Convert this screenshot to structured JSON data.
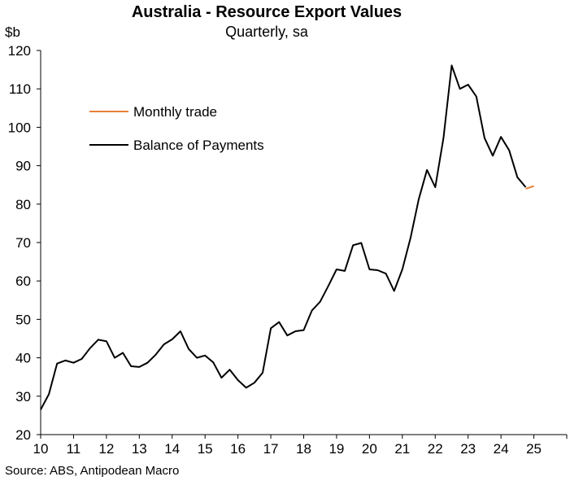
{
  "chart_data": {
    "type": "line",
    "title": "Australia - Resource Export Values",
    "subtitle": "Quarterly, sa",
    "ylabel": "$b",
    "ylim": [
      20,
      120
    ],
    "xlim": [
      2010,
      2026
    ],
    "yticks": [
      20,
      30,
      40,
      50,
      60,
      70,
      80,
      90,
      100,
      110,
      120
    ],
    "xtick_labels": [
      "10",
      "11",
      "12",
      "13",
      "14",
      "15",
      "16",
      "17",
      "18",
      "19",
      "20",
      "21",
      "22",
      "23",
      "24",
      "25"
    ],
    "grid": false,
    "legend_position": "top-left",
    "source": "Source: ABS, Antipodean Macro",
    "series": [
      {
        "name": "Monthly trade",
        "color": "#E8803A",
        "x": [
          2024.75,
          2025.0
        ],
        "y": [
          84.0,
          84.7
        ]
      },
      {
        "name": "Balance of Payments",
        "color": "#000000",
        "x": [
          2010.0,
          2010.25,
          2010.5,
          2010.75,
          2011.0,
          2011.25,
          2011.5,
          2011.75,
          2012.0,
          2012.25,
          2012.5,
          2012.75,
          2013.0,
          2013.25,
          2013.5,
          2013.75,
          2014.0,
          2014.25,
          2014.5,
          2014.75,
          2015.0,
          2015.25,
          2015.5,
          2015.75,
          2016.0,
          2016.25,
          2016.5,
          2016.75,
          2017.0,
          2017.25,
          2017.5,
          2017.75,
          2018.0,
          2018.25,
          2018.5,
          2018.75,
          2019.0,
          2019.25,
          2019.5,
          2019.75,
          2020.0,
          2020.25,
          2020.5,
          2020.75,
          2021.0,
          2021.25,
          2021.5,
          2021.75,
          2022.0,
          2022.25,
          2022.5,
          2022.75,
          2023.0,
          2023.25,
          2023.5,
          2023.75,
          2024.0,
          2024.25,
          2024.5,
          2024.75
        ],
        "y": [
          26.5,
          30.5,
          38.5,
          39.3,
          38.7,
          39.7,
          42.5,
          44.7,
          44.3,
          40.0,
          41.3,
          37.8,
          37.6,
          38.7,
          40.8,
          43.5,
          44.8,
          46.9,
          42.3,
          40.0,
          40.6,
          38.8,
          34.8,
          36.9,
          34.2,
          32.2,
          33.5,
          36.1,
          47.7,
          49.3,
          45.8,
          46.9,
          47.2,
          52.3,
          54.6,
          58.7,
          63.0,
          62.6,
          69.3,
          69.9,
          63.0,
          62.8,
          61.9,
          57.4,
          63.0,
          71.2,
          81.3,
          88.9,
          84.4,
          97.2,
          116.1,
          110.0,
          111.1,
          108.0,
          97.2,
          92.6,
          97.5,
          94.0,
          87.0,
          84.4
        ]
      }
    ]
  }
}
